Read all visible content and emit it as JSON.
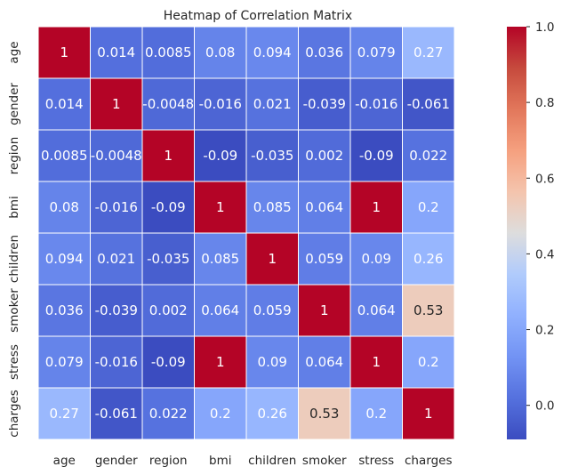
{
  "chart_data": {
    "type": "heatmap",
    "title": "Heatmap of Correlation Matrix",
    "xlabel": "",
    "ylabel": "",
    "x_categories": [
      "age",
      "gender",
      "region",
      "bmi",
      "children",
      "smoker",
      "stress",
      "charges"
    ],
    "y_categories": [
      "age",
      "gender",
      "region",
      "bmi",
      "children",
      "smoker",
      "stress",
      "charges"
    ],
    "values": [
      [
        1,
        0.014,
        0.0085,
        0.08,
        0.094,
        0.036,
        0.079,
        0.27
      ],
      [
        0.014,
        1,
        -0.0048,
        -0.016,
        0.021,
        -0.039,
        -0.016,
        -0.061
      ],
      [
        0.0085,
        -0.0048,
        1,
        -0.09,
        -0.035,
        0.002,
        -0.09,
        0.022
      ],
      [
        0.08,
        -0.016,
        -0.09,
        1,
        0.085,
        0.064,
        1,
        0.2
      ],
      [
        0.094,
        0.021,
        -0.035,
        0.085,
        1,
        0.059,
        0.09,
        0.26
      ],
      [
        0.036,
        -0.039,
        0.002,
        0.064,
        0.059,
        1,
        0.064,
        0.53
      ],
      [
        0.079,
        -0.016,
        -0.09,
        1,
        0.09,
        0.064,
        1,
        0.2
      ],
      [
        0.27,
        -0.061,
        0.022,
        0.2,
        0.26,
        0.53,
        0.2,
        1
      ]
    ],
    "annotations": [
      [
        "1",
        "0.014",
        "0.0085",
        "0.08",
        "0.094",
        "0.036",
        "0.079",
        "0.27"
      ],
      [
        "0.014",
        "1",
        "-0.0048",
        "-0.016",
        "0.021",
        "-0.039",
        "-0.016",
        "-0.061"
      ],
      [
        "0.0085",
        "-0.0048",
        "1",
        "-0.09",
        "-0.035",
        "0.002",
        "-0.09",
        "0.022"
      ],
      [
        "0.08",
        "-0.016",
        "-0.09",
        "1",
        "0.085",
        "0.064",
        "1",
        "0.2"
      ],
      [
        "0.094",
        "0.021",
        "-0.035",
        "0.085",
        "1",
        "0.059",
        "0.09",
        "0.26"
      ],
      [
        "0.036",
        "-0.039",
        "0.002",
        "0.064",
        "0.059",
        "1",
        "0.064",
        "0.53"
      ],
      [
        "0.079",
        "-0.016",
        "-0.09",
        "1",
        "0.09",
        "0.064",
        "1",
        "0.2"
      ],
      [
        "0.27",
        "-0.061",
        "0.022",
        "0.2",
        "0.26",
        "0.53",
        "0.2",
        "1"
      ]
    ],
    "colormap": "coolwarm",
    "color_range": [
      -0.09,
      1
    ],
    "colorbar_ticks": [
      "0.0",
      "0.2",
      "0.4",
      "0.6",
      "0.8",
      "1.0"
    ],
    "colorbar_tick_values": [
      0,
      0.2,
      0.4,
      0.6,
      0.8,
      1.0
    ],
    "grid": false,
    "cell_border_color": "#ffffff",
    "annotation_dark_color": "#262626",
    "annotation_light_color": "#ffffff"
  }
}
